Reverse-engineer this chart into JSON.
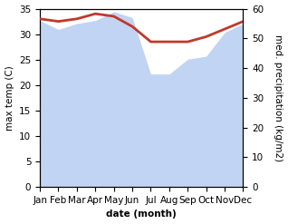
{
  "months": [
    "Jan",
    "Feb",
    "Mar",
    "Apr",
    "May",
    "Jun",
    "Jul",
    "Aug",
    "Sep",
    "Oct",
    "Nov",
    "Dec"
  ],
  "month_indices": [
    0,
    1,
    2,
    3,
    4,
    5,
    6,
    7,
    8,
    9,
    10,
    11
  ],
  "temp": [
    33.0,
    32.5,
    33.0,
    34.0,
    33.5,
    31.5,
    28.5,
    28.5,
    28.5,
    29.5,
    31.0,
    32.5
  ],
  "precip": [
    56,
    53,
    55,
    56,
    59,
    57,
    38,
    38,
    43,
    44,
    52,
    55
  ],
  "temp_color": "#c0392b",
  "precip_color": "#aec6f0",
  "fill_alpha": 0.75,
  "temp_ylim": [
    0,
    35
  ],
  "precip_ylim": [
    0,
    60
  ],
  "temp_yticks": [
    0,
    5,
    10,
    15,
    20,
    25,
    30,
    35
  ],
  "precip_yticks": [
    0,
    10,
    20,
    30,
    40,
    50,
    60
  ],
  "ylabel_left": "max temp (C)",
  "ylabel_right": "med. precipitation (kg/m2)",
  "xlabel": "date (month)",
  "bg_color": "#ffffff",
  "plot_bg_color": "#ffffff",
  "temp_linewidth": 2.0,
  "font_size": 7.5
}
